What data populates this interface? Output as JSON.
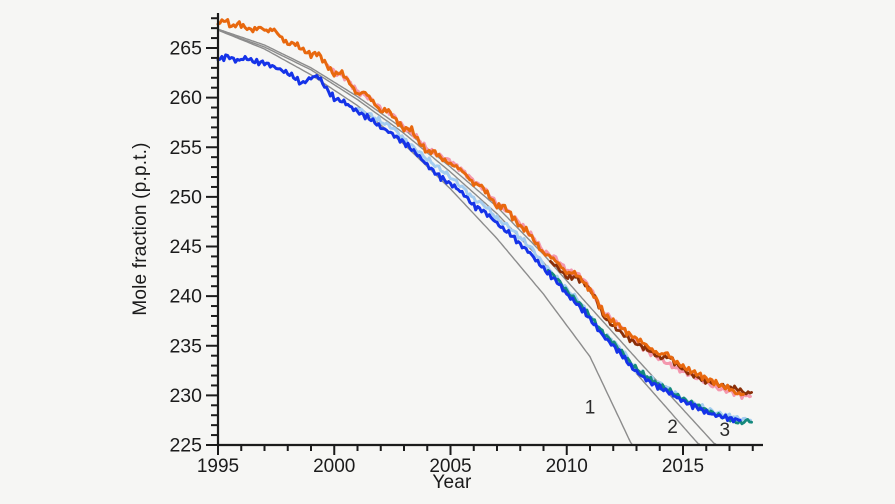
{
  "chart_data": {
    "type": "line",
    "title": "",
    "xlabel": "Year",
    "ylabel": "Mole fraction (p.p.t.)",
    "x_range": [
      1995,
      2018.45
    ],
    "y_range": [
      225,
      268.5
    ],
    "x_major_ticks": [
      1995,
      2000,
      2005,
      2010,
      2015
    ],
    "x_minor_step": 1,
    "y_major_ticks": [
      225,
      230,
      235,
      240,
      245,
      250,
      255,
      260,
      265
    ],
    "y_minor_step": 1,
    "grid": false,
    "legend": "none",
    "background": "#f6f6f4",
    "axis_color": "#1b1b1b",
    "scenario_labels": [
      {
        "text": "1",
        "x": 2011.0,
        "y": 228.8
      },
      {
        "text": "2",
        "x": 2014.55,
        "y": 226.8
      },
      {
        "text": "3",
        "x": 2016.8,
        "y": 226.5
      }
    ],
    "series": [
      {
        "id": "projection-1",
        "kind": "scenario",
        "color": "#8c8c8c",
        "width": 1.4,
        "points": [
          [
            1995,
            266.8
          ],
          [
            1997,
            264.9
          ],
          [
            1999,
            262.3
          ],
          [
            2001,
            259.2
          ],
          [
            2003,
            255.3
          ],
          [
            2005,
            250.8
          ],
          [
            2007,
            245.8
          ],
          [
            2009,
            240.2
          ],
          [
            2011,
            233.9
          ],
          [
            2012.8,
            225.0
          ]
        ]
      },
      {
        "id": "projection-2",
        "kind": "scenario",
        "color": "#8c8c8c",
        "width": 1.4,
        "points": [
          [
            1995,
            266.8
          ],
          [
            1997,
            265.1
          ],
          [
            1999,
            262.8
          ],
          [
            2001,
            259.8
          ],
          [
            2003,
            256.4
          ],
          [
            2005,
            252.5
          ],
          [
            2007,
            248.3
          ],
          [
            2009,
            243.4
          ],
          [
            2011,
            237.9
          ],
          [
            2013,
            232.2
          ],
          [
            2015.7,
            225.0
          ]
        ]
      },
      {
        "id": "projection-3",
        "kind": "scenario",
        "color": "#8c8c8c",
        "width": 1.4,
        "points": [
          [
            1995,
            266.9
          ],
          [
            1997,
            265.3
          ],
          [
            1999,
            263.0
          ],
          [
            2001,
            260.1
          ],
          [
            2003,
            256.8
          ],
          [
            2005,
            253.0
          ],
          [
            2007,
            249.0
          ],
          [
            2009,
            244.2
          ],
          [
            2011,
            238.9
          ],
          [
            2013,
            233.7
          ],
          [
            2016.4,
            225.0
          ]
        ]
      },
      {
        "id": "lightblue-line",
        "kind": "data",
        "color": "#a5cdf0",
        "width": 3,
        "points": [
          [
            2001.0,
            258.9
          ],
          [
            2001.5,
            258.3
          ],
          [
            2002.0,
            257.6
          ],
          [
            2002.5,
            257.0
          ],
          [
            2003.0,
            255.8
          ],
          [
            2003.5,
            254.8
          ],
          [
            2004.0,
            253.8
          ],
          [
            2004.5,
            252.9
          ],
          [
            2005.0,
            252.0
          ],
          [
            2005.5,
            251.0
          ],
          [
            2006.0,
            249.8
          ],
          [
            2006.5,
            249.1
          ],
          [
            2007.0,
            247.8
          ],
          [
            2007.5,
            247.0
          ],
          [
            2008.0,
            245.9
          ],
          [
            2008.5,
            244.8
          ],
          [
            2009.0,
            243.2
          ],
          [
            2009.5,
            242.0
          ],
          [
            2010.0,
            240.7
          ],
          [
            2010.5,
            239.6
          ],
          [
            2011.0,
            237.9
          ],
          [
            2011.5,
            236.4
          ],
          [
            2012.0,
            235.4
          ],
          [
            2012.5,
            234.2
          ],
          [
            2013.0,
            232.5
          ],
          [
            2013.5,
            231.9
          ],
          [
            2014.0,
            231.2
          ],
          [
            2014.5,
            230.5
          ],
          [
            2015.0,
            229.6
          ],
          [
            2015.5,
            229.1
          ],
          [
            2016.0,
            228.6
          ],
          [
            2016.5,
            228.2
          ],
          [
            2017.0,
            227.9
          ],
          [
            2017.5,
            227.6
          ],
          [
            2017.9,
            227.5
          ]
        ]
      },
      {
        "id": "pink-line",
        "kind": "data",
        "color": "#f498ae",
        "width": 3,
        "points": [
          [
            1999.7,
            263.3
          ],
          [
            2000.0,
            262.6
          ],
          [
            2000.5,
            262.0
          ],
          [
            2001.0,
            260.6
          ],
          [
            2001.5,
            260.0
          ],
          [
            2002.0,
            258.9
          ],
          [
            2002.5,
            258.3
          ],
          [
            2003.0,
            257.0
          ],
          [
            2003.5,
            256.1
          ],
          [
            2004.0,
            254.8
          ],
          [
            2004.5,
            254.2
          ],
          [
            2005.0,
            253.6
          ],
          [
            2005.5,
            252.7
          ],
          [
            2006.0,
            251.6
          ],
          [
            2006.5,
            250.7
          ],
          [
            2007.0,
            249.3
          ],
          [
            2007.5,
            248.5
          ],
          [
            2008.0,
            247.3
          ],
          [
            2008.5,
            246.1
          ],
          [
            2009.0,
            244.5
          ],
          [
            2009.5,
            243.9
          ],
          [
            2010.0,
            242.6
          ],
          [
            2010.5,
            242.2
          ],
          [
            2011.0,
            240.9
          ],
          [
            2011.5,
            238.6
          ],
          [
            2012.0,
            237.6
          ],
          [
            2012.5,
            236.5
          ],
          [
            2013.0,
            235.4
          ],
          [
            2013.5,
            234.4
          ],
          [
            2014.0,
            233.7
          ],
          [
            2014.5,
            233.0
          ],
          [
            2015.0,
            232.4
          ],
          [
            2015.5,
            231.9
          ],
          [
            2016.0,
            231.3
          ],
          [
            2016.5,
            230.7
          ],
          [
            2017.0,
            230.4
          ],
          [
            2017.5,
            230.0
          ],
          [
            2017.9,
            229.9
          ]
        ]
      },
      {
        "id": "teal-line",
        "kind": "data",
        "color": "#15897c",
        "width": 2.8,
        "points": [
          [
            2009.2,
            242.6
          ],
          [
            2009.6,
            241.7
          ],
          [
            2010.0,
            240.5
          ],
          [
            2010.4,
            239.6
          ],
          [
            2010.8,
            238.6
          ],
          [
            2011.2,
            237.4
          ],
          [
            2011.6,
            236.2
          ],
          [
            2012.0,
            235.3
          ],
          [
            2012.4,
            234.3
          ],
          [
            2012.8,
            233.1
          ],
          [
            2013.2,
            232.3
          ],
          [
            2013.6,
            231.6
          ],
          [
            2014.0,
            231.0
          ],
          [
            2014.4,
            230.5
          ],
          [
            2014.8,
            229.9
          ],
          [
            2015.2,
            229.4
          ],
          [
            2015.6,
            229.0
          ],
          [
            2016.0,
            228.5
          ],
          [
            2016.4,
            228.1
          ],
          [
            2016.8,
            227.8
          ],
          [
            2017.2,
            227.4
          ],
          [
            2017.5,
            227.2
          ],
          [
            2017.75,
            227.5
          ],
          [
            2017.95,
            227.3
          ]
        ]
      },
      {
        "id": "darkred-line",
        "kind": "data",
        "color": "#8a2f08",
        "width": 2.8,
        "points": [
          [
            2009.3,
            243.5
          ],
          [
            2009.6,
            242.9
          ],
          [
            2010.0,
            241.9
          ],
          [
            2010.4,
            241.9
          ],
          [
            2010.8,
            241.2
          ],
          [
            2011.2,
            240.0
          ],
          [
            2011.6,
            237.9
          ],
          [
            2012.0,
            237.0
          ],
          [
            2012.5,
            236.0
          ],
          [
            2013.0,
            235.2
          ],
          [
            2013.5,
            234.6
          ],
          [
            2014.0,
            233.8
          ],
          [
            2014.4,
            233.9
          ],
          [
            2014.8,
            233.0
          ],
          [
            2015.2,
            232.3
          ],
          [
            2015.6,
            231.9
          ],
          [
            2016.0,
            231.4
          ],
          [
            2016.4,
            231.2
          ],
          [
            2016.8,
            230.9
          ],
          [
            2017.1,
            230.8
          ],
          [
            2017.4,
            230.6
          ],
          [
            2017.7,
            230.2
          ],
          [
            2017.95,
            230.3
          ]
        ]
      },
      {
        "id": "blue-line",
        "kind": "data",
        "color": "#1533e8",
        "width": 3,
        "points": [
          [
            1995.0,
            263.8
          ],
          [
            1995.4,
            264.2
          ],
          [
            1995.8,
            263.7
          ],
          [
            1996.2,
            264.0
          ],
          [
            1996.6,
            263.6
          ],
          [
            1997.0,
            263.5
          ],
          [
            1997.4,
            263.1
          ],
          [
            1997.8,
            262.7
          ],
          [
            1998.2,
            262.2
          ],
          [
            1998.6,
            261.4
          ],
          [
            1999.0,
            262.0
          ],
          [
            1999.3,
            262.2
          ],
          [
            1999.6,
            261.1
          ],
          [
            2000.0,
            259.9
          ],
          [
            2000.4,
            259.6
          ],
          [
            2000.8,
            258.9
          ],
          [
            2001.2,
            258.3
          ],
          [
            2001.6,
            257.8
          ],
          [
            2002.0,
            257.0
          ],
          [
            2002.4,
            256.5
          ],
          [
            2002.8,
            255.8
          ],
          [
            2003.2,
            255.1
          ],
          [
            2003.6,
            254.2
          ],
          [
            2004.0,
            253.2
          ],
          [
            2004.4,
            252.3
          ],
          [
            2004.8,
            251.6
          ],
          [
            2005.2,
            251.0
          ],
          [
            2005.6,
            250.2
          ],
          [
            2006.0,
            249.1
          ],
          [
            2006.4,
            248.6
          ],
          [
            2006.8,
            247.8
          ],
          [
            2007.2,
            246.9
          ],
          [
            2007.6,
            246.2
          ],
          [
            2008.0,
            245.2
          ],
          [
            2008.4,
            244.4
          ],
          [
            2008.8,
            243.3
          ],
          [
            2009.2,
            242.3
          ],
          [
            2009.6,
            241.4
          ],
          [
            2010.0,
            240.2
          ],
          [
            2010.4,
            239.3
          ],
          [
            2010.8,
            238.3
          ],
          [
            2011.2,
            237.1
          ],
          [
            2011.6,
            235.9
          ],
          [
            2012.0,
            235.0
          ],
          [
            2012.4,
            234.0
          ],
          [
            2012.8,
            232.8
          ],
          [
            2013.2,
            232.0
          ],
          [
            2013.6,
            231.3
          ],
          [
            2014.0,
            230.8
          ],
          [
            2014.4,
            230.3
          ],
          [
            2014.8,
            229.7
          ],
          [
            2015.2,
            229.2
          ],
          [
            2015.6,
            228.8
          ],
          [
            2016.0,
            228.3
          ],
          [
            2016.4,
            228.0
          ],
          [
            2016.8,
            227.8
          ],
          [
            2017.1,
            227.6
          ],
          [
            2017.45,
            227.5
          ]
        ]
      },
      {
        "id": "orange-line",
        "kind": "data",
        "color": "#e8680e",
        "width": 3,
        "points": [
          [
            1995.0,
            267.4
          ],
          [
            1995.3,
            267.9
          ],
          [
            1995.6,
            267.1
          ],
          [
            1995.9,
            267.5
          ],
          [
            1996.2,
            267.0
          ],
          [
            1996.5,
            266.8
          ],
          [
            1996.8,
            267.1
          ],
          [
            1997.1,
            266.7
          ],
          [
            1997.4,
            266.9
          ],
          [
            1997.7,
            266.1
          ],
          [
            1998.0,
            265.4
          ],
          [
            1998.3,
            265.5
          ],
          [
            1998.6,
            264.9
          ],
          [
            1999.0,
            264.3
          ],
          [
            1999.3,
            264.5
          ],
          [
            1999.6,
            263.5
          ],
          [
            2000.0,
            262.3
          ],
          [
            2000.3,
            262.6
          ],
          [
            2000.6,
            261.7
          ],
          [
            2001.0,
            260.3
          ],
          [
            2001.3,
            260.6
          ],
          [
            2001.6,
            259.8
          ],
          [
            2002.0,
            258.6
          ],
          [
            2002.3,
            258.8
          ],
          [
            2002.6,
            257.9
          ],
          [
            2003.0,
            256.8
          ],
          [
            2003.3,
            256.9
          ],
          [
            2003.6,
            255.7
          ],
          [
            2004.0,
            254.5
          ],
          [
            2004.3,
            254.6
          ],
          [
            2004.6,
            253.9
          ],
          [
            2005.0,
            253.3
          ],
          [
            2005.3,
            253.0
          ],
          [
            2005.6,
            252.4
          ],
          [
            2006.0,
            251.3
          ],
          [
            2006.3,
            251.2
          ],
          [
            2006.6,
            250.3
          ],
          [
            2007.0,
            249.0
          ],
          [
            2007.3,
            249.1
          ],
          [
            2007.6,
            248.2
          ],
          [
            2008.0,
            247.0
          ],
          [
            2008.3,
            246.6
          ],
          [
            2008.6,
            245.6
          ],
          [
            2009.0,
            244.3
          ],
          [
            2009.3,
            244.0
          ],
          [
            2009.6,
            243.4
          ],
          [
            2010.0,
            242.3
          ],
          [
            2010.3,
            242.4
          ],
          [
            2010.6,
            241.8
          ],
          [
            2011.0,
            240.6
          ],
          [
            2011.3,
            239.6
          ],
          [
            2011.6,
            238.2
          ],
          [
            2012.0,
            237.4
          ],
          [
            2012.3,
            237.0
          ],
          [
            2012.6,
            236.3
          ],
          [
            2013.0,
            235.7
          ],
          [
            2013.3,
            235.3
          ],
          [
            2013.6,
            234.7
          ],
          [
            2014.0,
            234.1
          ],
          [
            2014.3,
            234.3
          ],
          [
            2014.6,
            233.5
          ],
          [
            2015.0,
            232.9
          ],
          [
            2015.3,
            232.5
          ],
          [
            2015.6,
            232.2
          ],
          [
            2016.0,
            231.7
          ],
          [
            2016.3,
            231.4
          ],
          [
            2016.6,
            231.0
          ],
          [
            2017.0,
            230.7
          ],
          [
            2017.3,
            230.2
          ],
          [
            2017.6,
            230.1
          ]
        ]
      }
    ]
  }
}
